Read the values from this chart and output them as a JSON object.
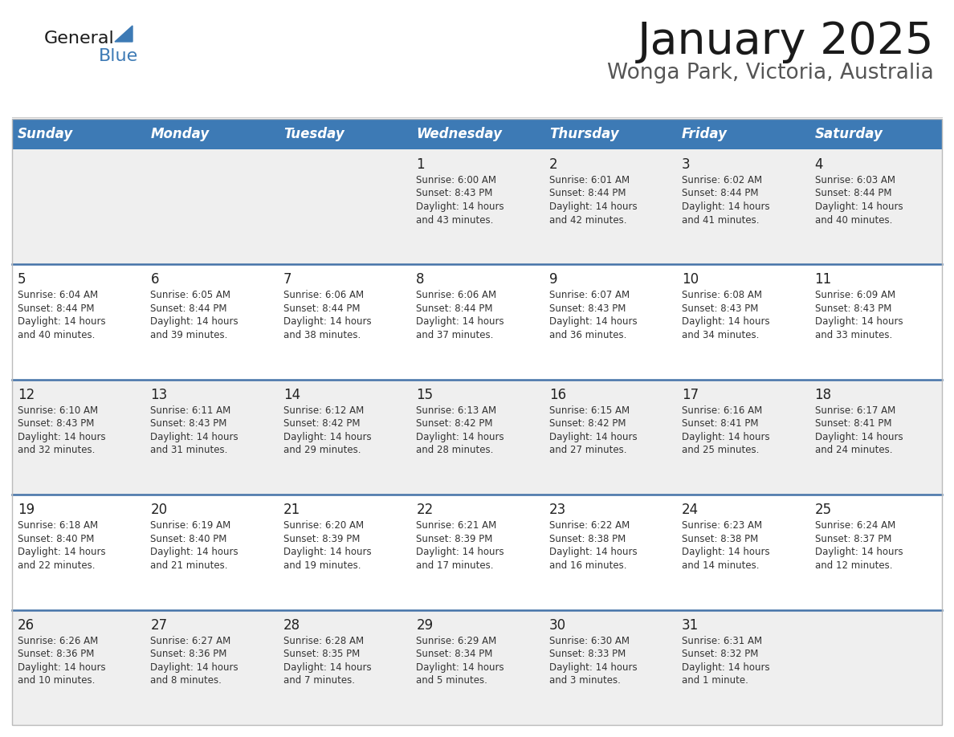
{
  "title": "January 2025",
  "subtitle": "Wonga Park, Victoria, Australia",
  "header_bg": "#3d7ab5",
  "header_text_color": "#ffffff",
  "days_of_week": [
    "Sunday",
    "Monday",
    "Tuesday",
    "Wednesday",
    "Thursday",
    "Friday",
    "Saturday"
  ],
  "row_bg_even": "#efefef",
  "row_bg_odd": "#ffffff",
  "row_separator_color": "#4472a8",
  "calendar_data": [
    {
      "day": 1,
      "col": 3,
      "row": 0,
      "sunrise": "6:00 AM",
      "sunset": "8:43 PM",
      "daylight_hours": 14,
      "daylight_minutes": 43
    },
    {
      "day": 2,
      "col": 4,
      "row": 0,
      "sunrise": "6:01 AM",
      "sunset": "8:44 PM",
      "daylight_hours": 14,
      "daylight_minutes": 42
    },
    {
      "day": 3,
      "col": 5,
      "row": 0,
      "sunrise": "6:02 AM",
      "sunset": "8:44 PM",
      "daylight_hours": 14,
      "daylight_minutes": 41
    },
    {
      "day": 4,
      "col": 6,
      "row": 0,
      "sunrise": "6:03 AM",
      "sunset": "8:44 PM",
      "daylight_hours": 14,
      "daylight_minutes": 40
    },
    {
      "day": 5,
      "col": 0,
      "row": 1,
      "sunrise": "6:04 AM",
      "sunset": "8:44 PM",
      "daylight_hours": 14,
      "daylight_minutes": 40
    },
    {
      "day": 6,
      "col": 1,
      "row": 1,
      "sunrise": "6:05 AM",
      "sunset": "8:44 PM",
      "daylight_hours": 14,
      "daylight_minutes": 39
    },
    {
      "day": 7,
      "col": 2,
      "row": 1,
      "sunrise": "6:06 AM",
      "sunset": "8:44 PM",
      "daylight_hours": 14,
      "daylight_minutes": 38
    },
    {
      "day": 8,
      "col": 3,
      "row": 1,
      "sunrise": "6:06 AM",
      "sunset": "8:44 PM",
      "daylight_hours": 14,
      "daylight_minutes": 37
    },
    {
      "day": 9,
      "col": 4,
      "row": 1,
      "sunrise": "6:07 AM",
      "sunset": "8:43 PM",
      "daylight_hours": 14,
      "daylight_minutes": 36
    },
    {
      "day": 10,
      "col": 5,
      "row": 1,
      "sunrise": "6:08 AM",
      "sunset": "8:43 PM",
      "daylight_hours": 14,
      "daylight_minutes": 34
    },
    {
      "day": 11,
      "col": 6,
      "row": 1,
      "sunrise": "6:09 AM",
      "sunset": "8:43 PM",
      "daylight_hours": 14,
      "daylight_minutes": 33
    },
    {
      "day": 12,
      "col": 0,
      "row": 2,
      "sunrise": "6:10 AM",
      "sunset": "8:43 PM",
      "daylight_hours": 14,
      "daylight_minutes": 32
    },
    {
      "day": 13,
      "col": 1,
      "row": 2,
      "sunrise": "6:11 AM",
      "sunset": "8:43 PM",
      "daylight_hours": 14,
      "daylight_minutes": 31
    },
    {
      "day": 14,
      "col": 2,
      "row": 2,
      "sunrise": "6:12 AM",
      "sunset": "8:42 PM",
      "daylight_hours": 14,
      "daylight_minutes": 29
    },
    {
      "day": 15,
      "col": 3,
      "row": 2,
      "sunrise": "6:13 AM",
      "sunset": "8:42 PM",
      "daylight_hours": 14,
      "daylight_minutes": 28
    },
    {
      "day": 16,
      "col": 4,
      "row": 2,
      "sunrise": "6:15 AM",
      "sunset": "8:42 PM",
      "daylight_hours": 14,
      "daylight_minutes": 27
    },
    {
      "day": 17,
      "col": 5,
      "row": 2,
      "sunrise": "6:16 AM",
      "sunset": "8:41 PM",
      "daylight_hours": 14,
      "daylight_minutes": 25
    },
    {
      "day": 18,
      "col": 6,
      "row": 2,
      "sunrise": "6:17 AM",
      "sunset": "8:41 PM",
      "daylight_hours": 14,
      "daylight_minutes": 24
    },
    {
      "day": 19,
      "col": 0,
      "row": 3,
      "sunrise": "6:18 AM",
      "sunset": "8:40 PM",
      "daylight_hours": 14,
      "daylight_minutes": 22
    },
    {
      "day": 20,
      "col": 1,
      "row": 3,
      "sunrise": "6:19 AM",
      "sunset": "8:40 PM",
      "daylight_hours": 14,
      "daylight_minutes": 21
    },
    {
      "day": 21,
      "col": 2,
      "row": 3,
      "sunrise": "6:20 AM",
      "sunset": "8:39 PM",
      "daylight_hours": 14,
      "daylight_minutes": 19
    },
    {
      "day": 22,
      "col": 3,
      "row": 3,
      "sunrise": "6:21 AM",
      "sunset": "8:39 PM",
      "daylight_hours": 14,
      "daylight_minutes": 17
    },
    {
      "day": 23,
      "col": 4,
      "row": 3,
      "sunrise": "6:22 AM",
      "sunset": "8:38 PM",
      "daylight_hours": 14,
      "daylight_minutes": 16
    },
    {
      "day": 24,
      "col": 5,
      "row": 3,
      "sunrise": "6:23 AM",
      "sunset": "8:38 PM",
      "daylight_hours": 14,
      "daylight_minutes": 14
    },
    {
      "day": 25,
      "col": 6,
      "row": 3,
      "sunrise": "6:24 AM",
      "sunset": "8:37 PM",
      "daylight_hours": 14,
      "daylight_minutes": 12
    },
    {
      "day": 26,
      "col": 0,
      "row": 4,
      "sunrise": "6:26 AM",
      "sunset": "8:36 PM",
      "daylight_hours": 14,
      "daylight_minutes": 10
    },
    {
      "day": 27,
      "col": 1,
      "row": 4,
      "sunrise": "6:27 AM",
      "sunset": "8:36 PM",
      "daylight_hours": 14,
      "daylight_minutes": 8
    },
    {
      "day": 28,
      "col": 2,
      "row": 4,
      "sunrise": "6:28 AM",
      "sunset": "8:35 PM",
      "daylight_hours": 14,
      "daylight_minutes": 7
    },
    {
      "day": 29,
      "col": 3,
      "row": 4,
      "sunrise": "6:29 AM",
      "sunset": "8:34 PM",
      "daylight_hours": 14,
      "daylight_minutes": 5
    },
    {
      "day": 30,
      "col": 4,
      "row": 4,
      "sunrise": "6:30 AM",
      "sunset": "8:33 PM",
      "daylight_hours": 14,
      "daylight_minutes": 3
    },
    {
      "day": 31,
      "col": 5,
      "row": 4,
      "sunrise": "6:31 AM",
      "sunset": "8:32 PM",
      "daylight_hours": 14,
      "daylight_minutes": 1
    }
  ]
}
